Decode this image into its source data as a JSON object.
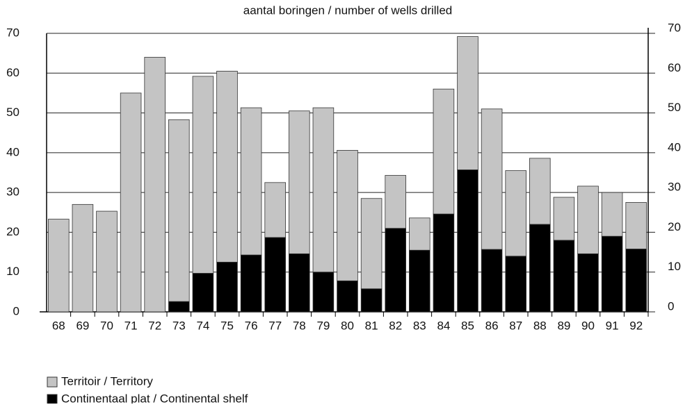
{
  "chart_data": {
    "type": "stacked_bar",
    "title": "aantal boringen / number of wells drilled",
    "categories": [
      "68",
      "69",
      "70",
      "71",
      "72",
      "73",
      "74",
      "75",
      "76",
      "77",
      "78",
      "79",
      "80",
      "81",
      "82",
      "83",
      "84",
      "85",
      "86",
      "87",
      "88",
      "89",
      "90",
      "91",
      "92"
    ],
    "series": [
      {
        "name": "Continentaal plat / Continental shelf",
        "color": "#000000",
        "values": [
          0,
          0,
          0,
          0,
          0,
          2.6,
          9.7,
          12.5,
          14.3,
          18.7,
          14.6,
          10,
          7.8,
          5.8,
          21,
          15.5,
          24.6,
          35.7,
          15.7,
          14,
          22,
          18,
          14.6,
          19,
          15.8
        ]
      },
      {
        "name": "Territoir / Territory",
        "color": "#c4c4c4",
        "values": [
          23.3,
          27,
          25.3,
          55,
          64,
          45.7,
          49.5,
          48,
          37,
          13.8,
          35.9,
          41.3,
          32.8,
          22.7,
          13.3,
          8.1,
          31.4,
          33.5,
          35.3,
          21.5,
          16.6,
          10.8,
          17,
          11,
          11.7
        ]
      }
    ],
    "ylim": [
      0,
      70
    ],
    "yticks": [
      0,
      10,
      20,
      30,
      40,
      50,
      60,
      70
    ],
    "grid": true
  }
}
